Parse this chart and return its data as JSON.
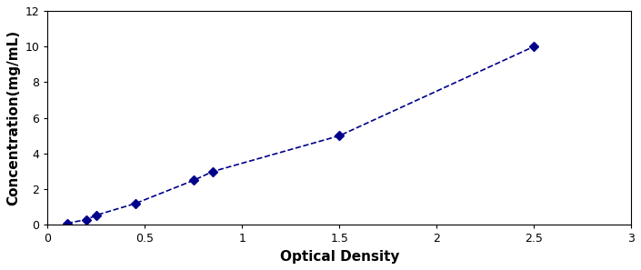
{
  "x": [
    0.1,
    0.2,
    0.25,
    0.45,
    0.75,
    0.85,
    1.5,
    2.5
  ],
  "y": [
    0.1,
    0.3,
    0.55,
    1.2,
    2.5,
    3.0,
    5.0,
    10.0
  ],
  "line_color": "#00008B",
  "marker": "D",
  "marker_size": 5,
  "linestyle": "--",
  "linewidth": 1.2,
  "xlabel": "Optical Density",
  "ylabel": "Concentration(mg/mL)",
  "xlim": [
    0,
    3
  ],
  "ylim": [
    0,
    12
  ],
  "xticks": [
    0,
    0.5,
    1,
    1.5,
    2,
    2.5,
    3
  ],
  "yticks": [
    0,
    2,
    4,
    6,
    8,
    10,
    12
  ],
  "xtick_labels": [
    "0",
    "0.5",
    "1",
    "1.5",
    "2",
    "2.5",
    "3"
  ],
  "ytick_labels": [
    "0",
    "2",
    "4",
    "6",
    "8",
    "10",
    "12"
  ],
  "xlabel_fontsize": 11,
  "ylabel_fontsize": 11,
  "tick_fontsize": 9,
  "background_color": "#ffffff",
  "border_color": "#000000"
}
